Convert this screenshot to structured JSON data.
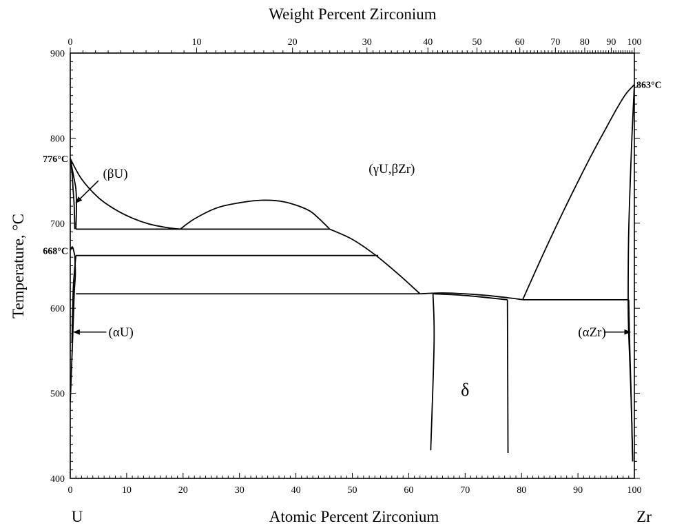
{
  "chart_data": {
    "type": "phase-diagram",
    "title": "Weight Percent Zirconium",
    "xlabel": "Atomic Percent Zirconium",
    "ylabel": "Temperature, °C",
    "xlim": [
      0,
      100
    ],
    "ylim": [
      400,
      900
    ],
    "bottom_axis": {
      "ticks": [
        0,
        10,
        20,
        30,
        40,
        50,
        60,
        70,
        80,
        90,
        100
      ],
      "tick_labels": [
        "0",
        "10",
        "20",
        "30",
        "40",
        "50",
        "60",
        "70",
        "80",
        "90",
        "100"
      ]
    },
    "left_axis": {
      "ticks": [
        400,
        500,
        600,
        700,
        800,
        900
      ],
      "tick_labels": [
        "400",
        "500",
        "600",
        "700",
        "800",
        "900"
      ]
    },
    "top_axis": {
      "ticks_at_atomic_pct": [
        0,
        22.4,
        39.4,
        52.6,
        63.4,
        72.1,
        79.7,
        86.0,
        91.2,
        95.9,
        100
      ],
      "tick_labels": [
        "0",
        "10",
        "20",
        "30",
        "40",
        "50",
        "60",
        "70",
        "80",
        "90",
        "100"
      ]
    },
    "corner_labels": {
      "left": "U",
      "right": "Zr"
    },
    "temperature_labels": [
      {
        "text": "776°C",
        "x": 0,
        "y": 776
      },
      {
        "text": "668°C",
        "x": 0,
        "y": 668
      },
      {
        "text": "863°C",
        "x": 100,
        "y": 863
      }
    ],
    "phase_labels": [
      {
        "text": "(γU,βZr)",
        "x": 57,
        "y": 764
      },
      {
        "text": "(βU)",
        "x": 8,
        "y": 758
      },
      {
        "text": "(αU)",
        "x": 9,
        "y": 572
      },
      {
        "text": "(αZr)",
        "x": 92.5,
        "y": 572
      },
      {
        "text": "δ",
        "x": 70,
        "y": 502
      }
    ],
    "isotherms": [
      {
        "name": "693",
        "x": [
          1.0,
          46.0
        ],
        "y": [
          693,
          693
        ]
      },
      {
        "name": "662",
        "x": [
          1.0,
          54.6
        ],
        "y": [
          662,
          662
        ]
      },
      {
        "name": "617",
        "x": [
          1.0,
          62.0
        ],
        "y": [
          617,
          617
        ]
      },
      {
        "name": "610",
        "x": [
          80.2,
          99.0
        ],
        "y": [
          610,
          610
        ]
      }
    ],
    "phase_boundaries": [
      {
        "name": "liquidus-left-dome",
        "x": [
          0,
          2,
          5,
          8,
          11,
          14,
          17,
          19.5
        ],
        "y": [
          776,
          752,
          730,
          716,
          706,
          699,
          695,
          693
        ]
      },
      {
        "name": "miscibility-gap",
        "x": [
          19.5,
          22,
          26,
          30,
          34,
          38,
          42,
          44,
          46
        ],
        "y": [
          693,
          705,
          718,
          724,
          727,
          725,
          716,
          706,
          693
        ]
      },
      {
        "name": "gamma-solvus",
        "x": [
          46,
          50,
          54,
          58,
          62
        ],
        "y": [
          693,
          681,
          663,
          641,
          617
        ]
      },
      {
        "name": "delta-top",
        "x": [
          62,
          66,
          70,
          74,
          78,
          80.2
        ],
        "y": [
          617,
          618,
          617,
          615,
          612,
          610
        ]
      },
      {
        "name": "delta-inner",
        "x": [
          64.3,
          70,
          77.5
        ],
        "y": [
          617,
          615,
          610
        ]
      },
      {
        "name": "delta-left",
        "x": [
          64.3,
          64.5,
          63.9
        ],
        "y": [
          617,
          560,
          433
        ]
      },
      {
        "name": "delta-right",
        "x": [
          77.5,
          77.6
        ],
        "y": [
          610,
          430
        ]
      },
      {
        "name": "zr-liquidus",
        "x": [
          80.2,
          84,
          88,
          92,
          95,
          97,
          98.5,
          100
        ],
        "y": [
          610,
          666,
          722,
          775,
          812,
          836,
          852,
          863
        ]
      },
      {
        "name": "zr-solvus-outer",
        "x": [
          100,
          99.5,
          99.0,
          98.9,
          99.0,
          99.4,
          99.7
        ],
        "y": [
          863,
          790,
          690,
          610,
          570,
          500,
          420
        ]
      },
      {
        "name": "zr-solvus-inner",
        "x": [
          99.0,
          99.2,
          99.5,
          99.7
        ],
        "y": [
          610,
          550,
          480,
          420
        ]
      },
      {
        "name": "u-beta-left",
        "x": [
          0,
          0.3,
          0.5,
          0.7,
          0.8
        ],
        "y": [
          776,
          760,
          740,
          720,
          693
        ]
      },
      {
        "name": "u-beta-right",
        "x": [
          0,
          0.6,
          1.0,
          1.1,
          1.0
        ],
        "y": [
          776,
          755,
          740,
          720,
          693
        ]
      },
      {
        "name": "u-668-step",
        "x": [
          0,
          0.4,
          0.8
        ],
        "y": [
          668,
          672,
          662
        ]
      },
      {
        "name": "u-alpha-outer",
        "x": [
          0.8,
          0.9,
          0.7,
          0.4,
          0.0
        ],
        "y": [
          662,
          640,
          617,
          560,
          490
        ]
      },
      {
        "name": "u-alpha-inner",
        "x": [
          1.0,
          0.7,
          0.5,
          0.3
        ],
        "y": [
          662,
          640,
          617,
          560
        ]
      }
    ],
    "arrows": [
      {
        "name": "beta-u-arrow",
        "from": [
          5.0,
          750
        ],
        "to": [
          1.0,
          724
        ]
      },
      {
        "name": "alpha-u-arrow",
        "from": [
          6.4,
          572
        ],
        "to": [
          0.6,
          572
        ]
      },
      {
        "name": "alpha-zr-arrow",
        "from": [
          94.6,
          572
        ],
        "to": [
          99.3,
          572
        ]
      }
    ]
  }
}
